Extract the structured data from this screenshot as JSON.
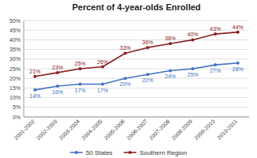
{
  "chart_data": {
    "type": "line",
    "title": "Percent of 4-year-olds Enrolled",
    "categories": [
      "2001-2002",
      "2002-2003",
      "2003-2004",
      "2004-2005",
      "2005-2006",
      "2006-2007",
      "2007-2008",
      "2008-2009",
      "2009-2010",
      "2010-2011"
    ],
    "series": [
      {
        "name": "50 States",
        "color": "#4472C4",
        "marker": "circle",
        "line_style": "solid",
        "values": [
          14,
          16,
          17,
          17,
          20,
          22,
          24,
          25,
          27,
          28
        ],
        "value_labels": [
          "14%",
          "16%",
          "17%",
          "17%",
          "20%",
          "22%",
          "24%",
          "25%",
          "27%",
          "28%"
        ]
      },
      {
        "name": "Southern Region",
        "color": "#8B2020",
        "marker": "circle",
        "line_style": "solid",
        "values": [
          21,
          23,
          25,
          26,
          33,
          36,
          38,
          40,
          43,
          44
        ],
        "value_labels": [
          "21%",
          "23%",
          "25%",
          "26%",
          "33%",
          "36%",
          "38%",
          "40%",
          "43%",
          "44%"
        ]
      }
    ],
    "ylim": [
      0,
      50
    ],
    "yticks": [
      {
        "value": 0,
        "label": "0%"
      },
      {
        "value": 5,
        "label": "5%"
      },
      {
        "value": 10,
        "label": "10%"
      },
      {
        "value": 15,
        "label": "15%"
      },
      {
        "value": 20,
        "label": "20%"
      },
      {
        "value": 25,
        "label": "25%"
      },
      {
        "value": 30,
        "label": "30%"
      },
      {
        "value": 35,
        "label": "35%"
      },
      {
        "value": 40,
        "label": "40%"
      },
      {
        "value": 45,
        "label": "45%"
      },
      {
        "value": 50,
        "label": "50%"
      }
    ],
    "grid": true,
    "legend": "bottom",
    "data_labels": true
  }
}
